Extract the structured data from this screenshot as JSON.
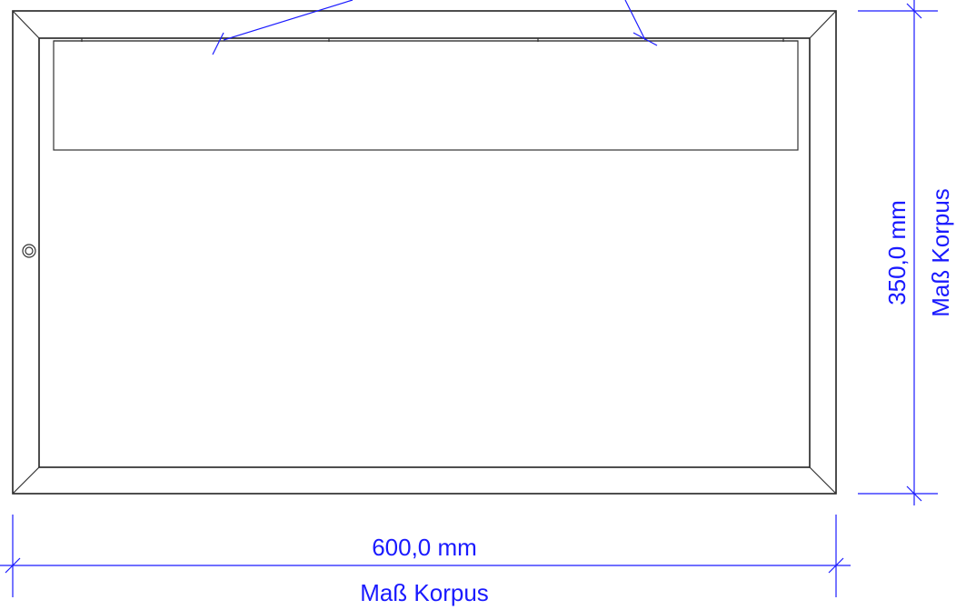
{
  "colors": {
    "dimension": "#1a1aff",
    "outline": "#222222",
    "background": "#ffffff"
  },
  "dimensions": {
    "width": {
      "value": "600,0 mm",
      "label": "Maß Korpus"
    },
    "height": {
      "value": "350,0 mm",
      "label": "Maß Korpus"
    }
  }
}
